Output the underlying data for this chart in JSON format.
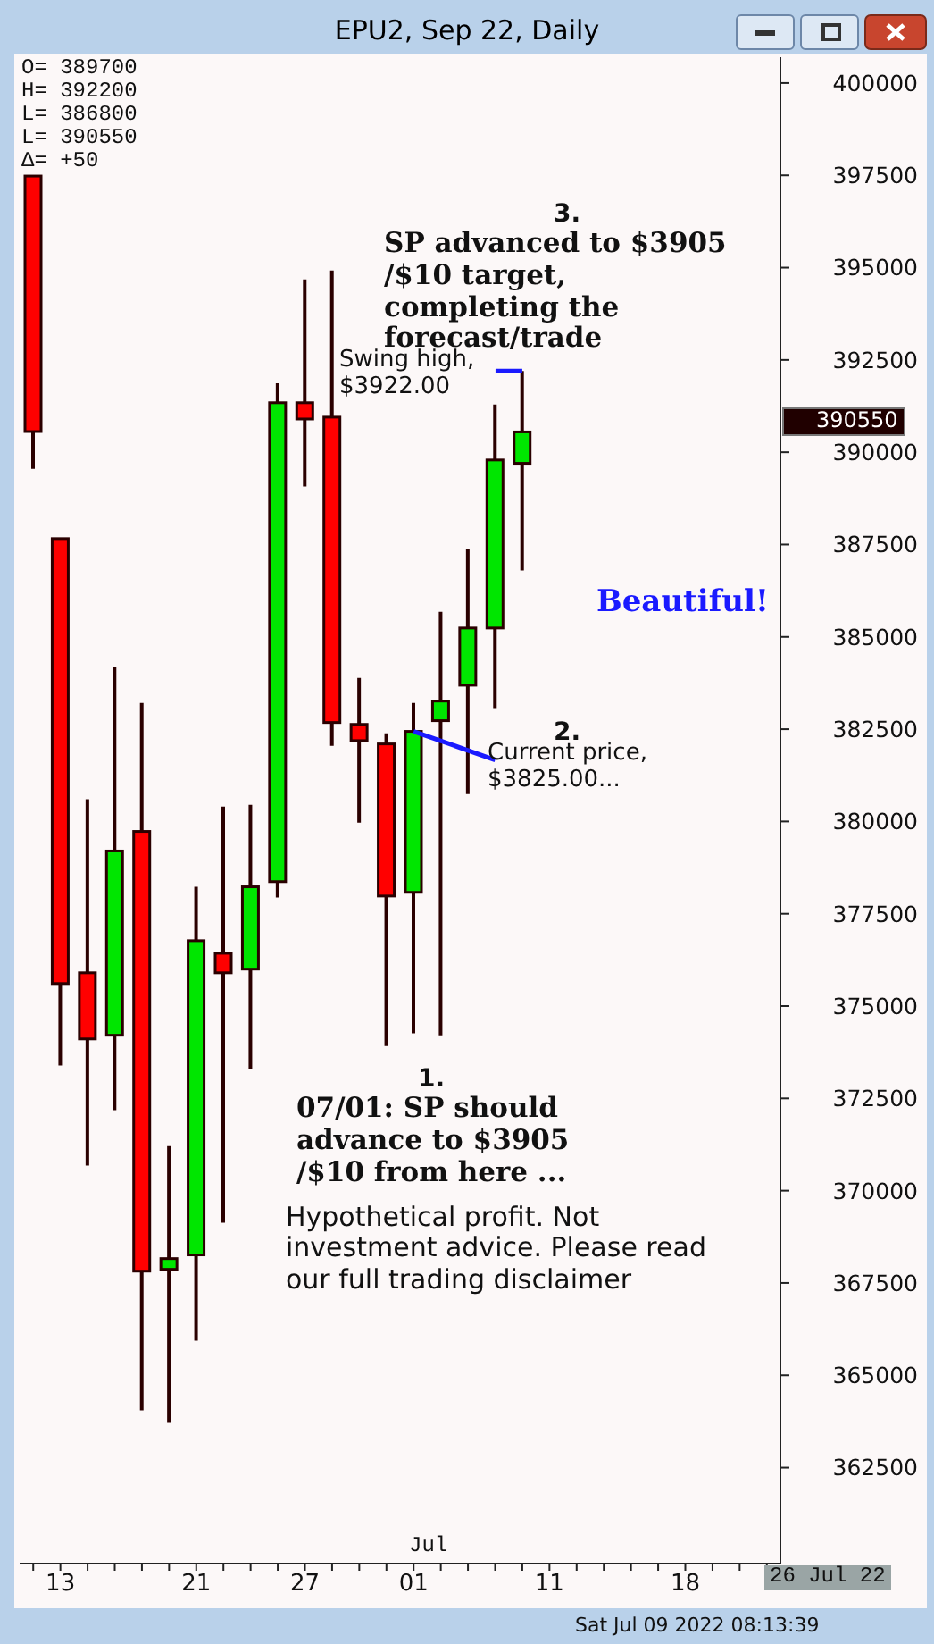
{
  "chart_data": {
    "type": "candlestick",
    "title": "EPU2, Sep 22, Daily",
    "categories": [
      null,
      "13",
      null,
      null,
      null,
      null,
      "21",
      null,
      null,
      null,
      "27",
      null,
      null,
      null,
      "01",
      null,
      null,
      null,
      null,
      "11",
      null,
      null,
      null,
      null,
      "18",
      null,
      null,
      null
    ],
    "ohlc": [
      [
        397480,
        397500,
        389550,
        390560
      ],
      [
        387660,
        387660,
        373390,
        375610
      ],
      [
        375900,
        380600,
        370680,
        374110
      ],
      [
        374210,
        384180,
        372180,
        379200
      ],
      [
        379730,
        383210,
        364050,
        367820
      ],
      [
        367870,
        371210,
        363710,
        368160
      ],
      [
        368260,
        378230,
        365940,
        376770
      ],
      [
        376430,
        380400,
        369130,
        375900
      ],
      [
        376000,
        380450,
        373290,
        378230
      ],
      [
        378370,
        391870,
        377940,
        391340
      ],
      [
        391340,
        394680,
        389070,
        390900
      ],
      [
        390950,
        394920,
        382050,
        382680
      ],
      [
        382630,
        383890,
        379970,
        382190
      ],
      [
        382100,
        382390,
        373920,
        377980
      ],
      [
        378080,
        383210,
        374260,
        382440
      ],
      [
        382730,
        385680,
        374210,
        383260
      ],
      [
        383690,
        387370,
        380740,
        385240
      ],
      [
        385240,
        391290,
        383070,
        389790
      ],
      [
        389700,
        392200,
        386800,
        390550
      ],
      null,
      null,
      null,
      null,
      null,
      null,
      null,
      null,
      null
    ],
    "colors": [
      "#ff0000",
      "#ff0000",
      "#ff0000",
      "#00e600",
      "#ff0000",
      "#00e600",
      "#00e600",
      "#ff0000",
      "#00e600",
      "#00e600",
      "#ff0000",
      "#ff0000",
      "#ff0000",
      "#ff0000",
      "#00e600",
      "#00e600",
      "#00e600",
      "#00e600",
      "#00e600",
      null,
      null,
      null,
      null,
      null,
      null,
      null,
      null,
      null
    ],
    "ylim": [
      359900,
      400700
    ],
    "yticks": [
      362500,
      365000,
      367500,
      370000,
      372500,
      375000,
      377500,
      380000,
      382500,
      385000,
      387500,
      390000,
      392500,
      395000,
      397500,
      400000
    ],
    "annotations": [
      "O=  389700",
      "H=  392200",
      "L=  386800",
      "L=  390550",
      "Δ=  +50",
      "3.",
      "SP advanced to $3905 /$10 target, completing the forecast/trade",
      "Swing high, $3922.00",
      "Beautiful!",
      "2.",
      {
        "text": "Current price, $3825.00...",
        "x": "01",
        "y": 382440
      },
      "1.",
      "07/01: SP should advance to $3905 /$10 from here ...",
      "Hypothetical profit. Not investment advice. Please read our full trading disclaimer",
      "Jul",
      "26 Jul 22",
      "Sat Jul 09 2022 08:13:39",
      "390550"
    ]
  }
}
